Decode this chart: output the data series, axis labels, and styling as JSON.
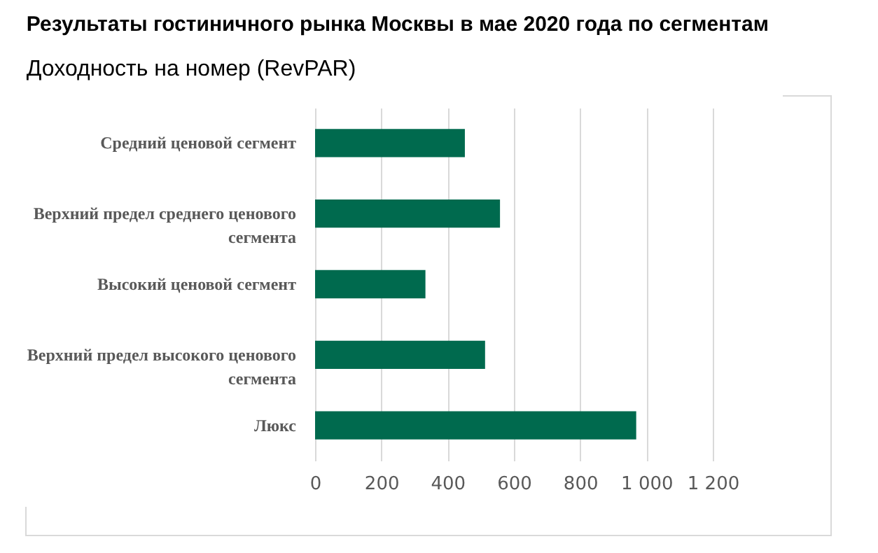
{
  "chart_data": {
    "type": "bar",
    "orientation": "horizontal",
    "title": "Результаты гостиничного рынка Москвы в мае 2020 года по сегментам",
    "subtitle": "Доходность на номер (RevPAR)",
    "categories": [
      "Средний ценовой сегмент",
      "Верхний предел среднего ценового сегмента",
      "Высокий ценовой сегмент",
      "Верхний предел высокого ценового сегмента",
      "Люкс"
    ],
    "values": [
      452,
      558,
      333,
      513,
      969
    ],
    "color": "#006a4e",
    "xlim": [
      0,
      1200
    ],
    "xticks": [
      0,
      200,
      400,
      600,
      {
        "value": 800,
        "label": "800"
      },
      {
        "value": 1000,
        "label": "1 000"
      },
      {
        "value": 1200,
        "label": "1 200"
      }
    ],
    "grid": "x"
  }
}
